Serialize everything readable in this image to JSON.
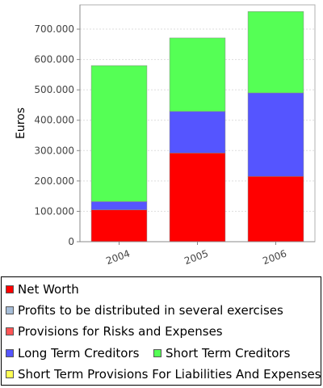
{
  "chart_data": {
    "type": "bar",
    "stacked": true,
    "categories": [
      "2004",
      "2005",
      "2006"
    ],
    "ylabel": "Euros",
    "ylim": [
      0,
      780000
    ],
    "yticks": [
      0,
      100000,
      200000,
      300000,
      400000,
      500000,
      600000,
      700000
    ],
    "ytick_labels": [
      "0",
      "100.000",
      "200.000",
      "300.000",
      "400.000",
      "500.000",
      "600.000",
      "700.000"
    ],
    "grid": true,
    "legend_position": "bottom",
    "series": [
      {
        "name": "Net Worth",
        "color": "#ff0000",
        "values": [
          105000,
          292000,
          215000
        ]
      },
      {
        "name": "Profits to be distributed in several exercises",
        "color": "#a6bdd7",
        "values": [
          0,
          0,
          0
        ]
      },
      {
        "name": "Provisions for Risks and Expenses",
        "color": "#ff5555",
        "values": [
          0,
          0,
          0
        ]
      },
      {
        "name": "Long Term Creditors",
        "color": "#5555ff",
        "values": [
          27000,
          137000,
          275000
        ]
      },
      {
        "name": "Short Term Creditors",
        "color": "#55ff55",
        "values": [
          448000,
          242000,
          268000
        ]
      },
      {
        "name": "Short Term Provisions For Liabilities And Expenses",
        "color": "#ffff55",
        "values": [
          0,
          0,
          0
        ]
      }
    ]
  }
}
